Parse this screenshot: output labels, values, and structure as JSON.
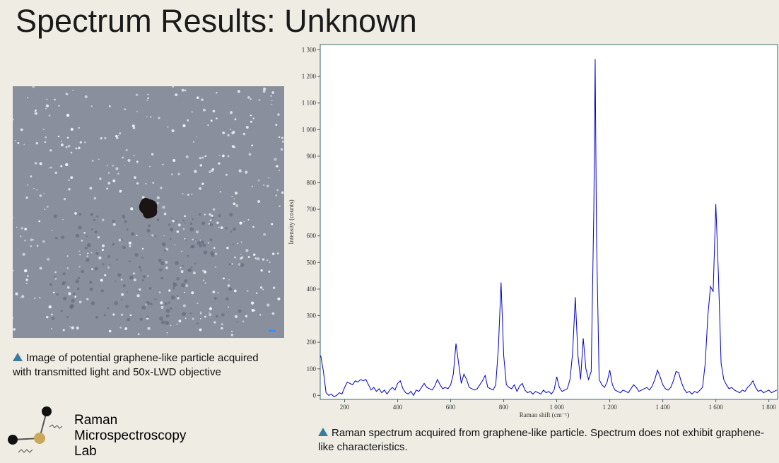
{
  "title": "Spectrum Results: Unknown",
  "image_caption": "Image of potential graphene-like particle acquired with transmitted light and 50x-LWD objective",
  "logo": {
    "lines": [
      "Raman",
      "Microspectroscopy",
      "Lab"
    ]
  },
  "chart_caption": "Raman spectrum acquired from graphene-like particle. Spectrum does not exhibit graphene-like characteristics.",
  "chart_data": {
    "type": "line",
    "x_label": "Raman shift (cm⁻¹)",
    "y_label": "Intensity (counts)",
    "color": "#0000cc",
    "x": [
      110,
      120,
      130,
      140,
      150,
      160,
      170,
      180,
      190,
      200,
      210,
      220,
      230,
      240,
      250,
      260,
      270,
      280,
      290,
      300,
      310,
      320,
      330,
      340,
      350,
      360,
      370,
      380,
      390,
      400,
      410,
      420,
      430,
      440,
      450,
      460,
      470,
      480,
      490,
      500,
      510,
      520,
      530,
      540,
      550,
      560,
      570,
      580,
      590,
      600,
      610,
      620,
      630,
      640,
      650,
      660,
      670,
      680,
      690,
      700,
      710,
      720,
      730,
      740,
      750,
      760,
      770,
      780,
      790,
      800,
      810,
      820,
      830,
      840,
      850,
      860,
      870,
      880,
      890,
      900,
      910,
      920,
      930,
      940,
      950,
      960,
      970,
      980,
      990,
      1000,
      1010,
      1020,
      1030,
      1040,
      1050,
      1060,
      1070,
      1080,
      1090,
      1100,
      1110,
      1120,
      1130,
      1140,
      1145,
      1150,
      1160,
      1170,
      1180,
      1190,
      1200,
      1210,
      1220,
      1230,
      1240,
      1250,
      1260,
      1270,
      1280,
      1290,
      1300,
      1310,
      1320,
      1330,
      1340,
      1350,
      1360,
      1370,
      1380,
      1390,
      1400,
      1410,
      1420,
      1430,
      1440,
      1450,
      1460,
      1470,
      1480,
      1490,
      1500,
      1510,
      1520,
      1530,
      1540,
      1550,
      1560,
      1570,
      1580,
      1590,
      1600,
      1610,
      1620,
      1630,
      1640,
      1650,
      1660,
      1670,
      1680,
      1690,
      1700,
      1710,
      1720,
      1730,
      1740,
      1750,
      1760,
      1770,
      1780,
      1790,
      1800,
      1810,
      1820,
      1830
    ],
    "values": [
      150,
      90,
      10,
      0,
      5,
      -5,
      0,
      10,
      5,
      30,
      50,
      45,
      40,
      55,
      50,
      60,
      55,
      60,
      40,
      20,
      30,
      15,
      25,
      10,
      20,
      5,
      20,
      30,
      20,
      45,
      55,
      25,
      10,
      5,
      15,
      0,
      20,
      15,
      30,
      45,
      30,
      25,
      20,
      35,
      60,
      40,
      25,
      30,
      25,
      40,
      80,
      195,
      120,
      45,
      80,
      60,
      30,
      25,
      20,
      25,
      40,
      55,
      75,
      30,
      25,
      20,
      40,
      180,
      425,
      150,
      40,
      30,
      25,
      40,
      15,
      35,
      45,
      20,
      10,
      15,
      5,
      15,
      10,
      5,
      20,
      10,
      15,
      5,
      20,
      70,
      30,
      15,
      20,
      25,
      60,
      160,
      370,
      150,
      60,
      215,
      100,
      60,
      90,
      700,
      1265,
      600,
      60,
      40,
      30,
      50,
      95,
      40,
      20,
      15,
      10,
      20,
      15,
      10,
      25,
      40,
      30,
      15,
      20,
      25,
      30,
      20,
      35,
      60,
      95,
      70,
      40,
      25,
      20,
      30,
      55,
      90,
      85,
      50,
      25,
      10,
      15,
      5,
      15,
      10,
      20,
      30,
      120,
      300,
      410,
      390,
      720,
      450,
      120,
      60,
      40,
      25,
      30,
      20,
      15,
      10,
      20,
      15,
      30,
      40,
      55,
      30,
      15,
      20,
      10,
      15,
      20,
      10,
      15,
      20
    ],
    "xlim": [
      108,
      1833
    ],
    "xticks": [
      200,
      400,
      600,
      800,
      {
        "value": 1000,
        "label": "1 000"
      },
      {
        "value": 1200,
        "label": "1 200"
      },
      {
        "value": 1400,
        "label": "1 400"
      },
      {
        "value": 1600,
        "label": "1 600"
      },
      {
        "value": 1800,
        "label": "1 800"
      }
    ],
    "ylim": [
      -15,
      1320
    ],
    "yticks": [
      0,
      100,
      200,
      300,
      400,
      500,
      600,
      700,
      800,
      900,
      {
        "value": 1000,
        "label": "1 000"
      },
      {
        "value": 1100,
        "label": "1 100"
      },
      {
        "value": 1200,
        "label": "1 200"
      },
      {
        "value": 1300,
        "label": "1 300"
      }
    ]
  }
}
